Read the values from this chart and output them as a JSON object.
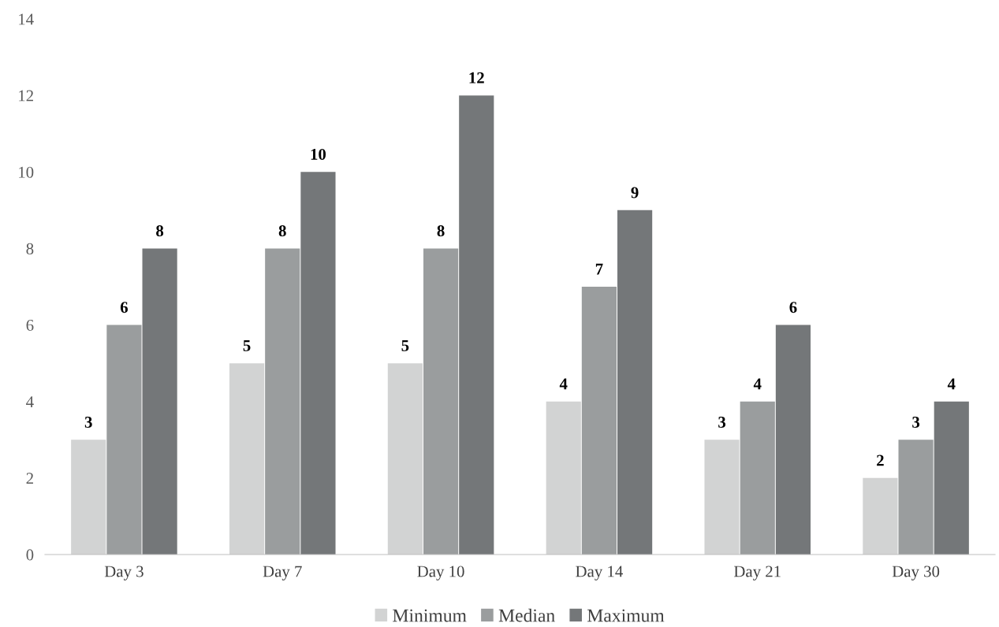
{
  "chart_data": {
    "type": "bar",
    "categories": [
      "Day 3",
      "Day 7",
      "Day 10",
      "Day 14",
      "Day 21",
      "Day 30"
    ],
    "series": [
      {
        "name": "Minimum",
        "color": "#d2d3d3",
        "values": [
          3,
          5,
          5,
          4,
          3,
          2
        ]
      },
      {
        "name": "Median",
        "color": "#9a9d9e",
        "values": [
          6,
          8,
          8,
          7,
          4,
          3
        ]
      },
      {
        "name": "Maximum",
        "color": "#747779",
        "values": [
          8,
          10,
          12,
          9,
          6,
          4
        ]
      }
    ],
    "ylim": [
      0,
      14
    ],
    "yticks": [
      0,
      2,
      4,
      6,
      8,
      10,
      12,
      14
    ],
    "data_labels": true,
    "grid": false,
    "legend": "bottom"
  }
}
